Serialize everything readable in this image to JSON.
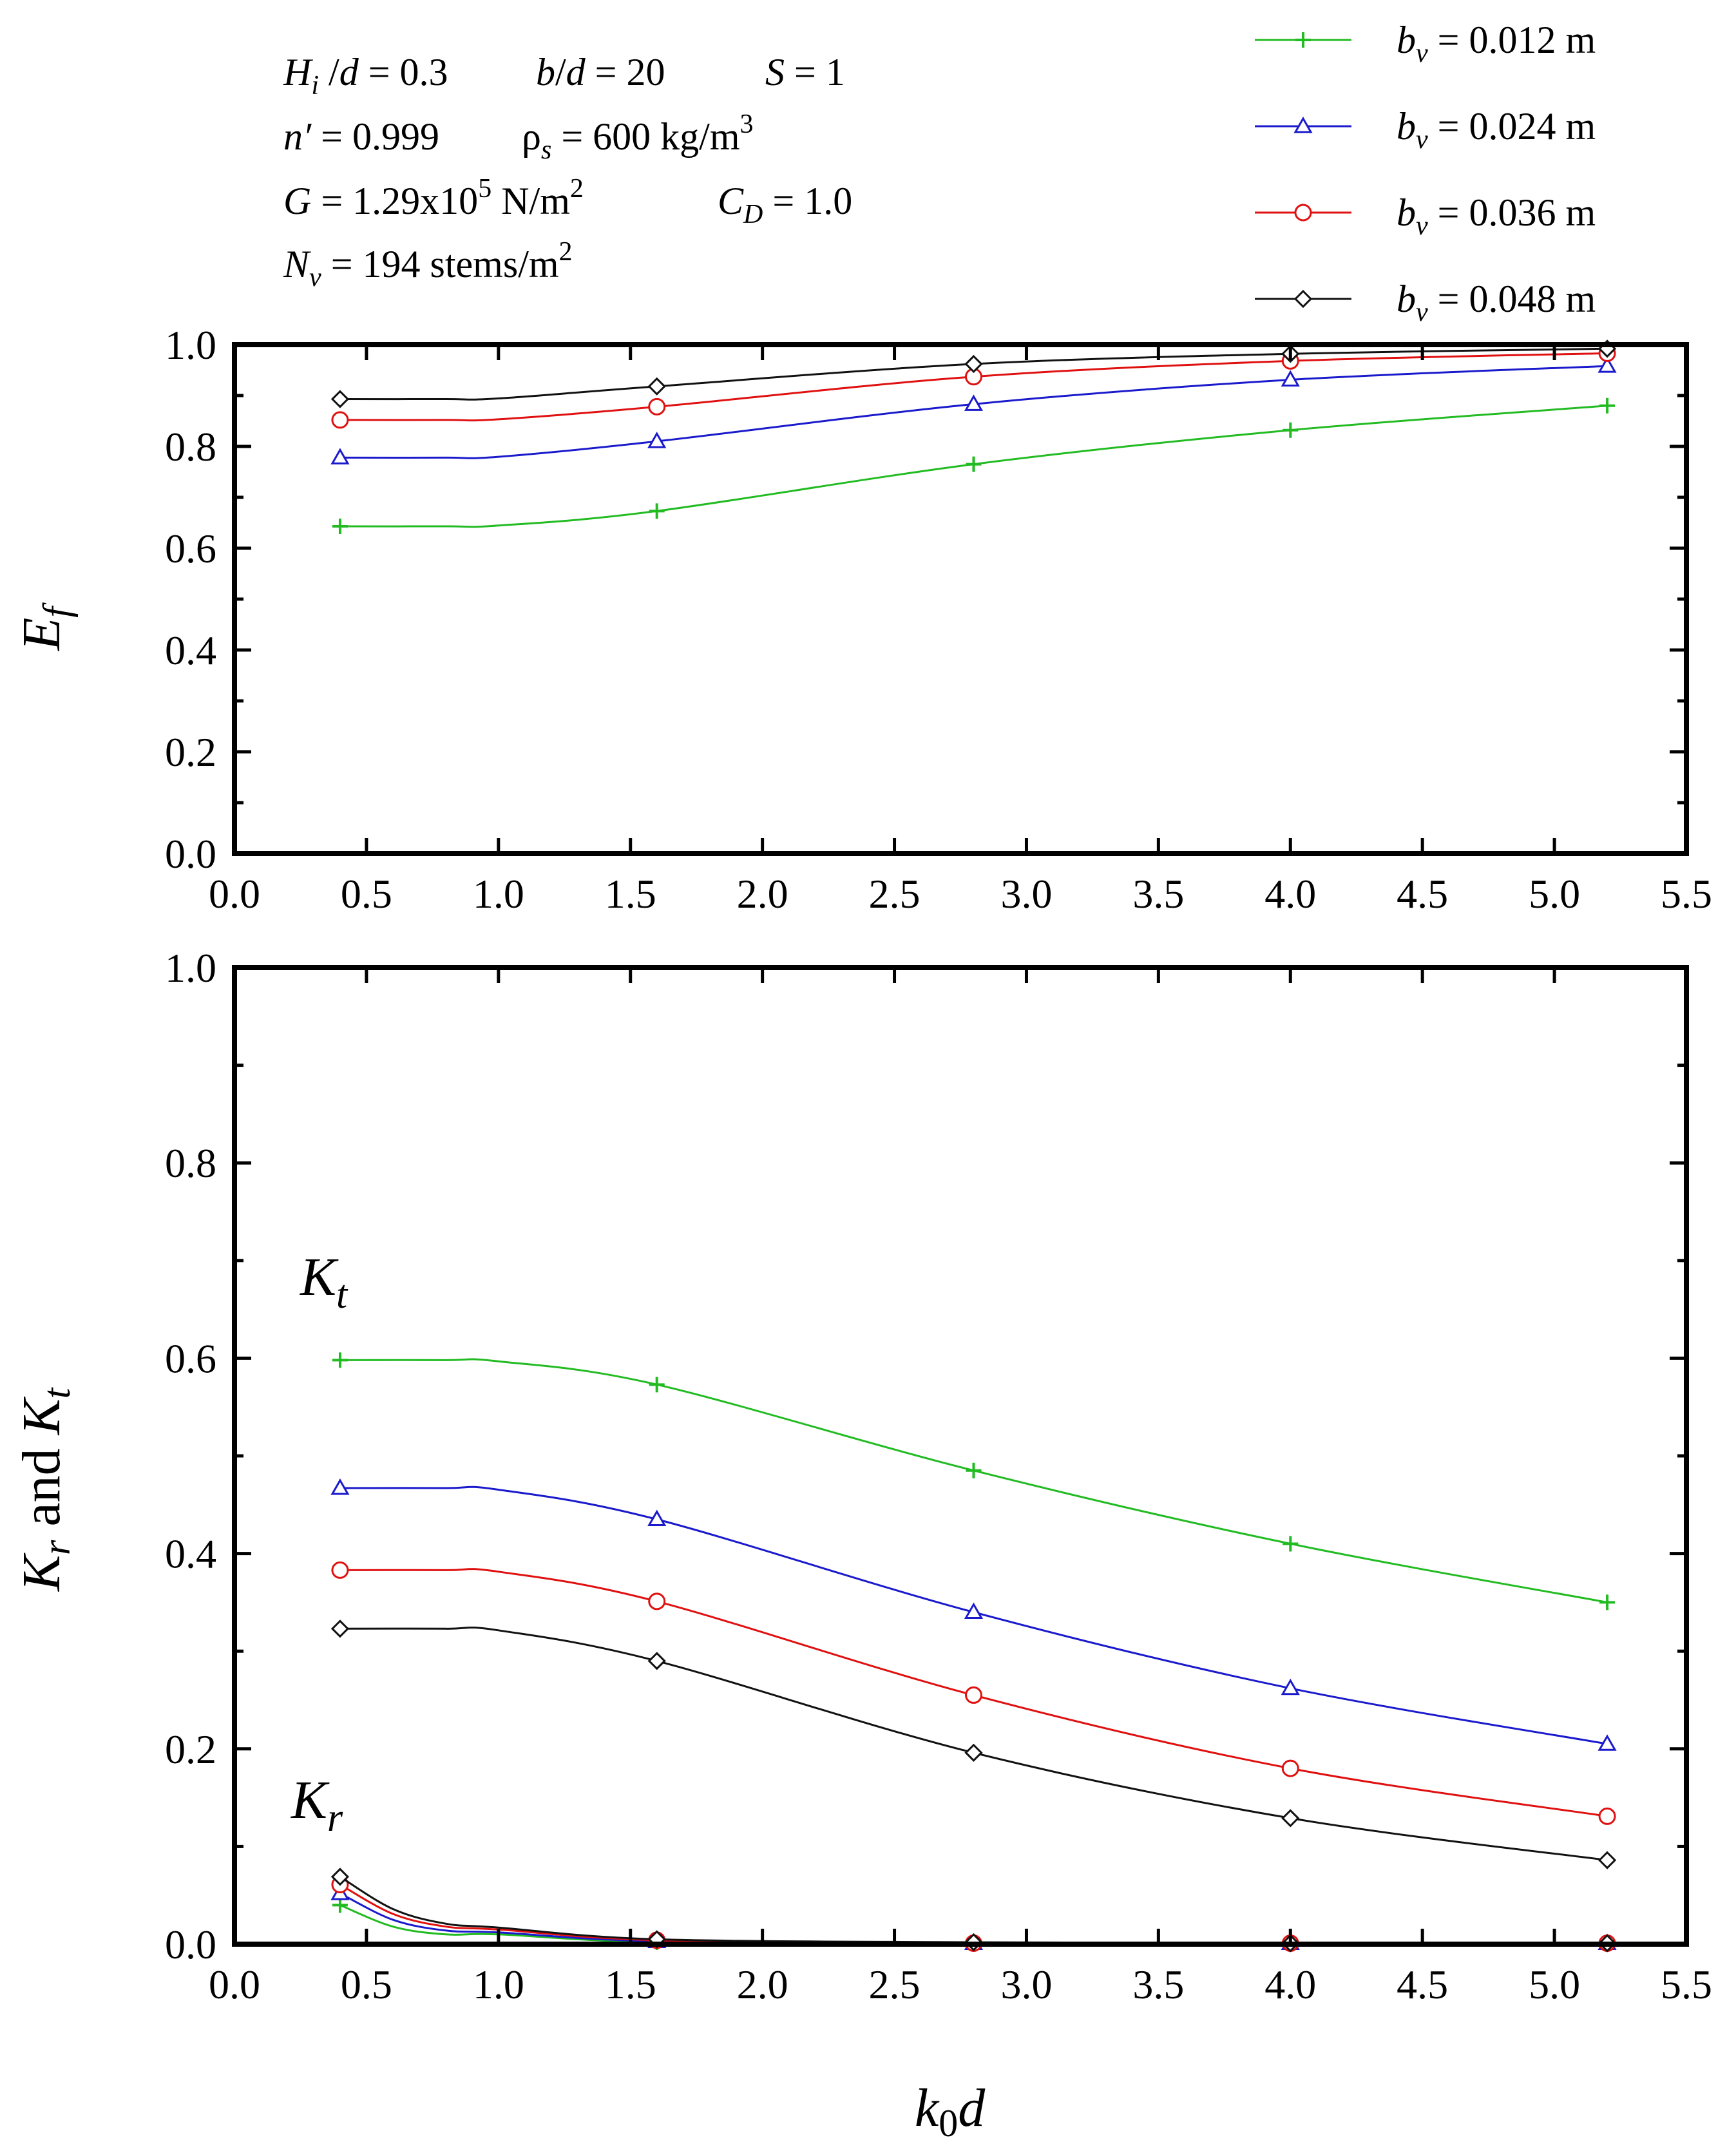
{
  "chart_data": [
    {
      "id": "ef",
      "type": "line",
      "ylabel": "E",
      "ylabel_sub": "f",
      "xlabel": "",
      "xlim": [
        0.0,
        5.5
      ],
      "ylim": [
        0.0,
        1.0
      ],
      "xticks": [
        "0.0",
        "0.5",
        "1.0",
        "1.5",
        "2.0",
        "2.5",
        "3.0",
        "3.5",
        "4.0",
        "4.5",
        "5.0",
        "5.5"
      ],
      "yticks": [
        "0.0",
        "0.2",
        "0.4",
        "0.6",
        "0.8",
        "1.0"
      ],
      "x": [
        0.4,
        1.6,
        2.8,
        4.0,
        5.2
      ],
      "series": [
        {
          "name": "b_v = 0.012 m",
          "color": "#22bb22",
          "marker": "plus",
          "values": [
            0.643,
            0.673,
            0.765,
            0.832,
            0.88
          ]
        },
        {
          "name": "b_v = 0.024 m",
          "color": "#1a1acc",
          "marker": "triangle",
          "values": [
            0.778,
            0.81,
            0.883,
            0.931,
            0.958
          ]
        },
        {
          "name": "b_v = 0.036 m",
          "color": "#e01010",
          "marker": "circle",
          "values": [
            0.852,
            0.878,
            0.937,
            0.968,
            0.983
          ]
        },
        {
          "name": "b_v = 0.048 m",
          "color": "#111111",
          "marker": "diamond",
          "values": [
            0.893,
            0.918,
            0.962,
            0.982,
            0.992
          ]
        }
      ]
    },
    {
      "id": "krkt",
      "type": "line",
      "ylabel": "K_r and K_t",
      "xlabel": "k0d",
      "xlim": [
        0.0,
        5.5
      ],
      "ylim": [
        0.0,
        1.0
      ],
      "xticks": [
        "0.0",
        "0.5",
        "1.0",
        "1.5",
        "2.0",
        "2.5",
        "3.0",
        "3.5",
        "4.0",
        "4.5",
        "5.0",
        "5.5"
      ],
      "yticks": [
        "0.0",
        "0.2",
        "0.4",
        "0.6",
        "0.8",
        "1.0"
      ],
      "x": [
        0.4,
        1.6,
        2.8,
        4.0,
        5.2
      ],
      "kt_series": [
        {
          "name": "b_v = 0.012 m",
          "color": "#22bb22",
          "marker": "plus",
          "values": [
            0.598,
            0.573,
            0.485,
            0.41,
            0.35
          ]
        },
        {
          "name": "b_v = 0.024 m",
          "color": "#1a1acc",
          "marker": "triangle",
          "values": [
            0.467,
            0.435,
            0.34,
            0.262,
            0.205
          ]
        },
        {
          "name": "b_v = 0.036 m",
          "color": "#e01010",
          "marker": "circle",
          "values": [
            0.383,
            0.351,
            0.255,
            0.18,
            0.131
          ]
        },
        {
          "name": "b_v = 0.048 m",
          "color": "#111111",
          "marker": "diamond",
          "values": [
            0.323,
            0.29,
            0.196,
            0.129,
            0.086
          ]
        }
      ],
      "kr_series": [
        {
          "name": "b_v = 0.012 m",
          "color": "#22bb22",
          "marker": "plus",
          "curve_x": [
            0.4,
            0.6,
            0.8,
            1.0,
            1.6,
            2.8,
            4.0,
            5.2
          ],
          "curve_y": [
            0.04,
            0.018,
            0.01,
            0.01,
            0.002,
            0.001,
            0.001,
            0.001
          ],
          "values": [
            0.04,
            0.002,
            0.001,
            0.001,
            0.001
          ]
        },
        {
          "name": "b_v = 0.024 m",
          "color": "#1a1acc",
          "marker": "triangle",
          "curve_x": [
            0.4,
            0.6,
            0.8,
            1.0,
            1.6,
            2.8,
            4.0,
            5.2
          ],
          "curve_y": [
            0.052,
            0.025,
            0.014,
            0.012,
            0.003,
            0.001,
            0.001,
            0.001
          ],
          "values": [
            0.052,
            0.003,
            0.001,
            0.001,
            0.001
          ]
        },
        {
          "name": "b_v = 0.036 m",
          "color": "#e01010",
          "marker": "circle",
          "curve_x": [
            0.4,
            0.6,
            0.8,
            1.0,
            1.6,
            2.8,
            4.0,
            5.2
          ],
          "curve_y": [
            0.061,
            0.031,
            0.018,
            0.015,
            0.004,
            0.001,
            0.001,
            0.001
          ],
          "values": [
            0.061,
            0.004,
            0.001,
            0.001,
            0.001
          ]
        },
        {
          "name": "b_v = 0.048 m",
          "color": "#111111",
          "marker": "diamond",
          "curve_x": [
            0.4,
            0.6,
            0.8,
            1.0,
            1.6,
            2.8,
            4.0,
            5.2
          ],
          "curve_y": [
            0.069,
            0.036,
            0.021,
            0.017,
            0.005,
            0.002,
            0.001,
            0.001
          ],
          "values": [
            0.069,
            0.005,
            0.002,
            0.001,
            0.001
          ]
        }
      ],
      "annotations": {
        "kt": "K_t",
        "kr": "K_r"
      }
    }
  ],
  "legend": {
    "placement": "top-right",
    "entries": [
      {
        "var": "b",
        "sub": "v",
        "value": "= 0.012 m",
        "color": "#22bb22",
        "marker": "plus"
      },
      {
        "var": "b",
        "sub": "v",
        "value": "= 0.024 m",
        "color": "#1a1acc",
        "marker": "triangle"
      },
      {
        "var": "b",
        "sub": "v",
        "value": "= 0.036 m",
        "color": "#e01010",
        "marker": "circle"
      },
      {
        "var": "b",
        "sub": "v",
        "value": "= 0.048 m",
        "color": "#111111",
        "marker": "diamond"
      }
    ]
  },
  "parameters": {
    "hi_var": "H",
    "hi_sub": "i",
    "hi_rest": " /",
    "hi_d": "d",
    "hi_val": " = 0.3",
    "bd_b": "b",
    "bd_slash": "/",
    "bd_d": "d",
    "bd_val": " = 20",
    "s_var": "S",
    "s_val": " = 1",
    "n_var": "n′",
    "n_val": " = 0.999",
    "rho_var": "ρ",
    "rho_sub": "s",
    "rho_val": " = 600 kg/m",
    "rho_sup": "3",
    "g_var": "G",
    "g_val": " = 1.29x10",
    "g_sup": "5",
    "g_unit": " N/m",
    "g_unit_sup": "2",
    "cd_var": "C",
    "cd_sub": "D",
    "cd_val": " = 1.0",
    "nv_var": "N",
    "nv_sub": "v",
    "nv_val": " = 194 stems/m",
    "nv_sup": "2"
  },
  "axis_titles": {
    "top_y_var": "E",
    "top_y_sub": "f",
    "bot_y_k1": "K",
    "bot_y_s1": "r",
    "bot_y_mid": " and ",
    "bot_y_k2": "K",
    "bot_y_s2": "t",
    "bot_x_k": "k",
    "bot_x_sub": "0",
    "bot_x_d": "d",
    "kt_k": "K",
    "kt_sub": "t",
    "kr_k": "K",
    "kr_sub": "r"
  }
}
